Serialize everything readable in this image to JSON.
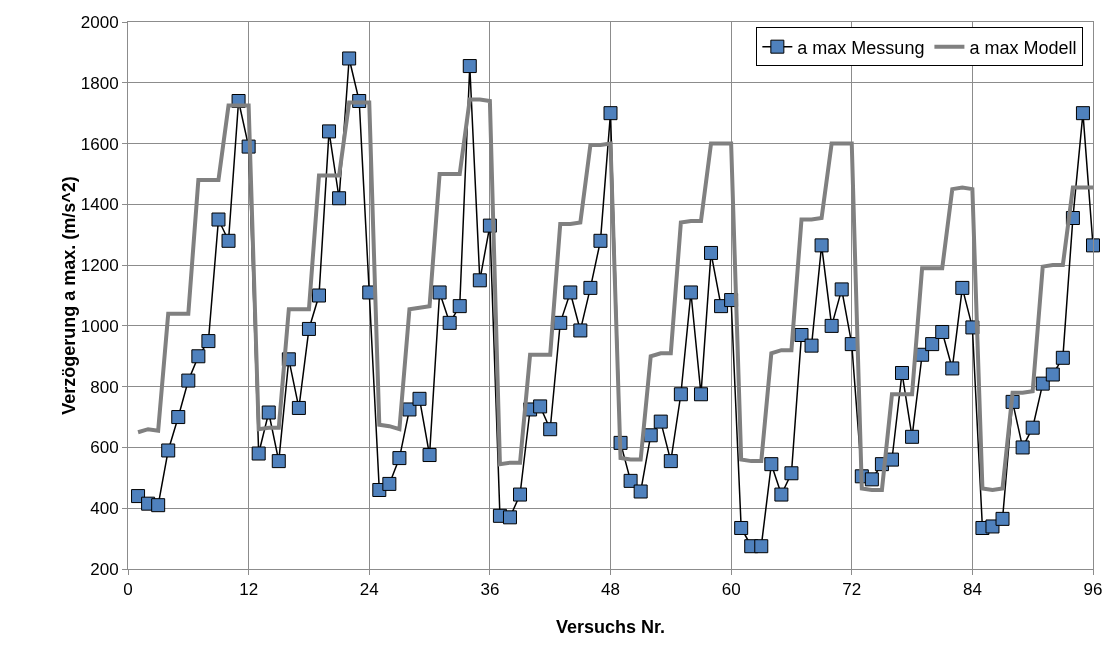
{
  "chart_data": {
    "type": "line",
    "xlabel": "Versuchs Nr.",
    "ylabel": "Verzögerung a max. (m/s^2)",
    "x": [
      1,
      2,
      3,
      4,
      5,
      6,
      7,
      8,
      9,
      10,
      11,
      12,
      13,
      14,
      15,
      16,
      17,
      18,
      19,
      20,
      21,
      22,
      23,
      24,
      25,
      26,
      27,
      28,
      29,
      30,
      31,
      32,
      33,
      34,
      35,
      36,
      37,
      38,
      39,
      40,
      41,
      42,
      43,
      44,
      45,
      46,
      47,
      48,
      49,
      50,
      51,
      52,
      53,
      54,
      55,
      56,
      57,
      58,
      59,
      60,
      61,
      62,
      63,
      64,
      65,
      66,
      67,
      68,
      69,
      70,
      71,
      72,
      73,
      74,
      75,
      76,
      77,
      78,
      79,
      80,
      81,
      82,
      83,
      84,
      85,
      86,
      87,
      88,
      89,
      90,
      91,
      92,
      93,
      94,
      95,
      96
    ],
    "series": [
      {
        "name": "a max Messung",
        "color": "#4f81bd",
        "marker": "square",
        "values": [
          440,
          415,
          410,
          590,
          700,
          820,
          900,
          950,
          1350,
          1280,
          1740,
          1590,
          580,
          715,
          555,
          890,
          730,
          990,
          1100,
          1640,
          1420,
          1880,
          1740,
          1110,
          460,
          480,
          565,
          725,
          760,
          575,
          1110,
          1010,
          1065,
          1855,
          1150,
          1330,
          375,
          370,
          445,
          725,
          735,
          660,
          1010,
          1110,
          985,
          1125,
          1280,
          1700,
          615,
          490,
          455,
          640,
          685,
          555,
          775,
          1110,
          775,
          1240,
          1065,
          1085,
          335,
          275,
          275,
          545,
          445,
          515,
          970,
          935,
          1265,
          1000,
          1120,
          940,
          505,
          495,
          545,
          560,
          845,
          635,
          905,
          940,
          980,
          860,
          1125,
          995,
          335,
          340,
          365,
          750,
          600,
          665,
          810,
          840,
          895,
          1355,
          1700,
          1265
        ]
      },
      {
        "name": "a max Modell",
        "color": "#808080",
        "marker": "none",
        "values": [
          650,
          660,
          655,
          1040,
          1040,
          1040,
          1480,
          1480,
          1480,
          1725,
          1725,
          1725,
          660,
          665,
          665,
          1055,
          1055,
          1055,
          1495,
          1495,
          1495,
          1735,
          1735,
          1735,
          675,
          670,
          660,
          1055,
          1060,
          1065,
          1500,
          1500,
          1500,
          1745,
          1745,
          1740,
          545,
          550,
          550,
          905,
          905,
          905,
          1335,
          1335,
          1340,
          1595,
          1595,
          1600,
          565,
          560,
          560,
          900,
          910,
          910,
          1340,
          1345,
          1345,
          1600,
          1600,
          1600,
          560,
          555,
          555,
          910,
          920,
          920,
          1350,
          1350,
          1355,
          1600,
          1600,
          1600,
          465,
          460,
          460,
          775,
          775,
          775,
          1190,
          1190,
          1190,
          1450,
          1455,
          1450,
          465,
          460,
          465,
          780,
          780,
          785,
          1195,
          1200,
          1200,
          1455,
          1455,
          1455
        ]
      }
    ],
    "xlim": [
      0,
      96
    ],
    "xticks": [
      0,
      12,
      24,
      36,
      48,
      60,
      72,
      84,
      96
    ],
    "ylim": [
      200,
      2000
    ],
    "yticks": [
      200,
      400,
      600,
      800,
      1000,
      1200,
      1400,
      1600,
      1800,
      2000
    ],
    "grid": true,
    "legend": "top right"
  }
}
